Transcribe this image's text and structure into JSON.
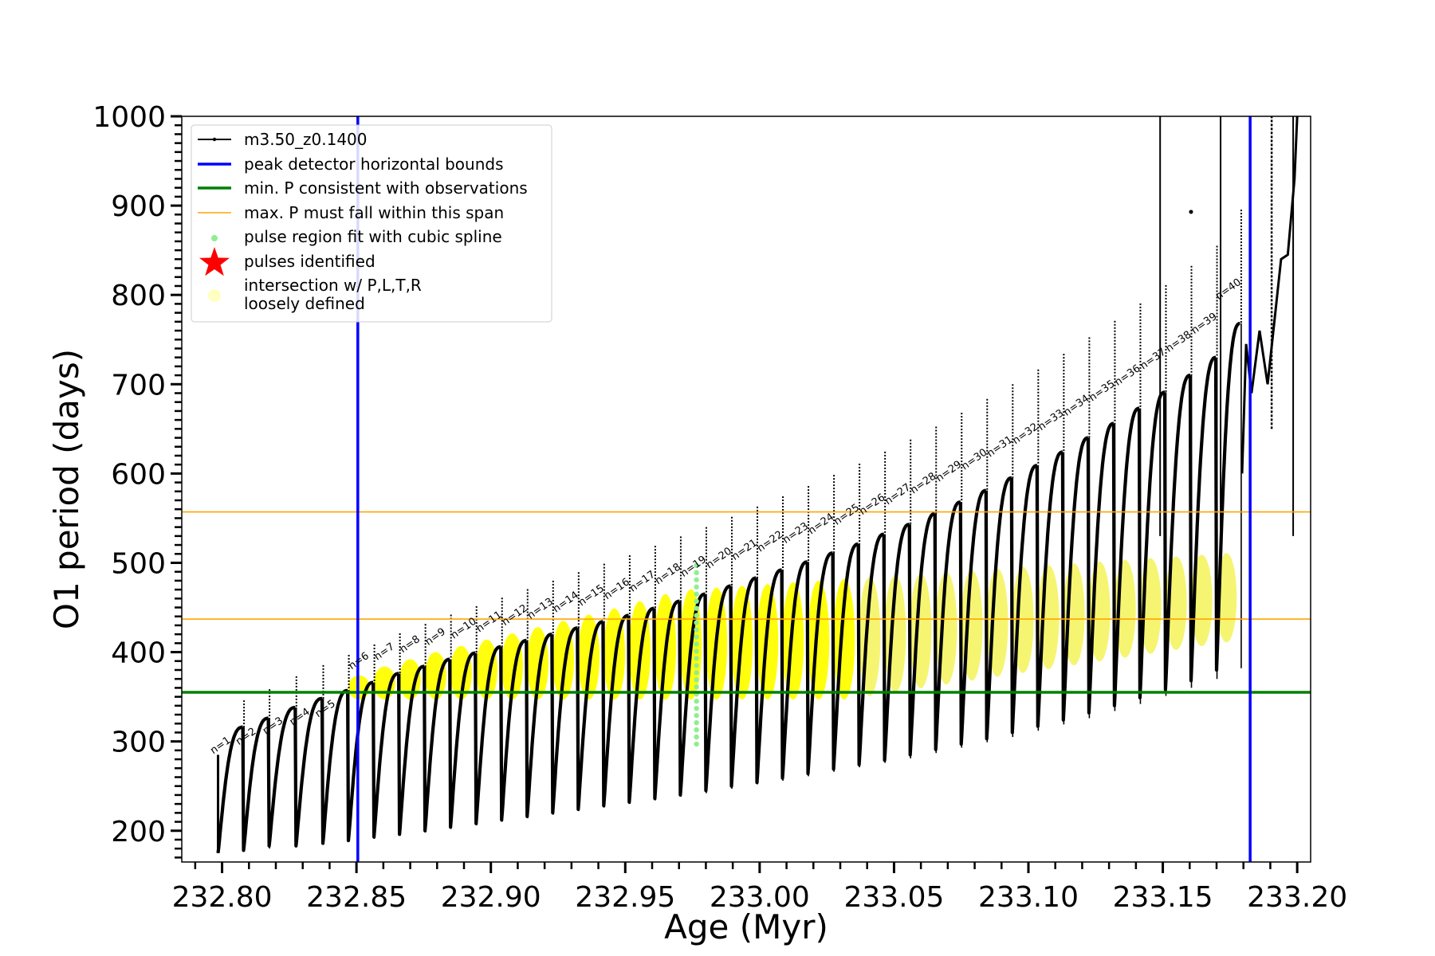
{
  "chart_data": {
    "type": "line",
    "xlabel": "Age (Myr)",
    "ylabel": "O1 period (days)",
    "xlim": [
      232.785,
      233.205
    ],
    "ylim": [
      165,
      1000
    ],
    "xticks": [
      232.8,
      232.85,
      232.9,
      232.95,
      233.0,
      233.05,
      233.1,
      233.15,
      233.2
    ],
    "xtick_labels": [
      "232.80",
      "232.85",
      "232.90",
      "232.95",
      "233.00",
      "233.05",
      "233.10",
      "233.15",
      "233.20"
    ],
    "yticks": [
      200,
      300,
      400,
      500,
      600,
      700,
      800,
      900,
      1000
    ],
    "ytick_labels": [
      "200",
      "300",
      "400",
      "500",
      "600",
      "700",
      "800",
      "900",
      "1000"
    ],
    "legend_position": "top-left",
    "legend": [
      {
        "label": "m3.50_z0.1400",
        "style": "line-marker",
        "color": "#000000"
      },
      {
        "label": "peak detector horizontal bounds",
        "style": "line",
        "color": "#0000ff"
      },
      {
        "label": "min. P consistent with observations",
        "style": "line",
        "color": "#008000"
      },
      {
        "label": "max. P must fall within this span",
        "style": "thin-line",
        "color": "#ffa500"
      },
      {
        "label": "pulse region fit with cubic spline",
        "style": "dot",
        "color": "#90ee90"
      },
      {
        "label": "pulses identified",
        "style": "star",
        "color": "#ff0000"
      },
      {
        "label": "intersection w/ P,L,T,R",
        "label2": "loosely defined",
        "style": "circle",
        "color": "#ffff99"
      }
    ],
    "vertical_lines": [
      {
        "name": "peak detector horizontal bounds",
        "x": 232.8505,
        "color": "#0000ff"
      },
      {
        "name": "peak detector horizontal bounds",
        "x": 233.1825,
        "color": "#0000ff"
      }
    ],
    "horizontal_lines": [
      {
        "name": "min. P consistent with observations",
        "y": 355,
        "color": "#008000"
      },
      {
        "name": "max. P must fall within this span",
        "y": 437,
        "color": "#ffa500"
      },
      {
        "name": "max. P must fall within this span",
        "y": 557,
        "color": "#ffa500"
      }
    ],
    "pulses": [
      {
        "n": 1,
        "t0": 232.7985,
        "t1": 232.808,
        "min": 175,
        "max": 316
      },
      {
        "n": 2,
        "t0": 232.808,
        "t1": 232.8175,
        "min": 178,
        "max": 326
      },
      {
        "n": 3,
        "t0": 232.8175,
        "t1": 232.8275,
        "min": 183,
        "max": 338
      },
      {
        "n": 4,
        "t0": 232.8275,
        "t1": 232.8375,
        "min": 183,
        "max": 348
      },
      {
        "n": 5,
        "t0": 232.8375,
        "t1": 232.847,
        "min": 186,
        "max": 357
      },
      {
        "n": 6,
        "t0": 232.847,
        "t1": 232.8565,
        "min": 189,
        "max": 366
      },
      {
        "n": 7,
        "t0": 232.8565,
        "t1": 232.866,
        "min": 193,
        "max": 376
      },
      {
        "n": 8,
        "t0": 232.866,
        "t1": 232.8755,
        "min": 196,
        "max": 384
      },
      {
        "n": 9,
        "t0": 232.8755,
        "t1": 232.885,
        "min": 200,
        "max": 392
      },
      {
        "n": 10,
        "t0": 232.885,
        "t1": 232.8945,
        "min": 204,
        "max": 399
      },
      {
        "n": 11,
        "t0": 232.8945,
        "t1": 232.904,
        "min": 208,
        "max": 406
      },
      {
        "n": 12,
        "t0": 232.904,
        "t1": 232.9135,
        "min": 212,
        "max": 413
      },
      {
        "n": 13,
        "t0": 232.9135,
        "t1": 232.923,
        "min": 216,
        "max": 420
      },
      {
        "n": 14,
        "t0": 232.923,
        "t1": 232.9325,
        "min": 220,
        "max": 427
      },
      {
        "n": 15,
        "t0": 232.9325,
        "t1": 232.942,
        "min": 224,
        "max": 434
      },
      {
        "n": 16,
        "t0": 232.942,
        "t1": 232.9515,
        "min": 228,
        "max": 441
      },
      {
        "n": 17,
        "t0": 232.9515,
        "t1": 232.961,
        "min": 232,
        "max": 449
      },
      {
        "n": 18,
        "t0": 232.961,
        "t1": 232.9705,
        "min": 236,
        "max": 457
      },
      {
        "n": 19,
        "t0": 232.9705,
        "t1": 232.98,
        "min": 240,
        "max": 465
      },
      {
        "n": 20,
        "t0": 232.98,
        "t1": 232.9895,
        "min": 245,
        "max": 474
      },
      {
        "n": 21,
        "t0": 232.9895,
        "t1": 232.999,
        "min": 250,
        "max": 483
      },
      {
        "n": 22,
        "t0": 232.999,
        "t1": 233.0085,
        "min": 254,
        "max": 492
      },
      {
        "n": 23,
        "t0": 233.0085,
        "t1": 233.018,
        "min": 259,
        "max": 501
      },
      {
        "n": 24,
        "t0": 233.018,
        "t1": 233.0275,
        "min": 264,
        "max": 511
      },
      {
        "n": 25,
        "t0": 233.0275,
        "t1": 233.037,
        "min": 269,
        "max": 521
      },
      {
        "n": 26,
        "t0": 233.037,
        "t1": 233.0465,
        "min": 274,
        "max": 532
      },
      {
        "n": 27,
        "t0": 233.0465,
        "t1": 233.056,
        "min": 279,
        "max": 543
      },
      {
        "n": 28,
        "t0": 233.056,
        "t1": 233.0655,
        "min": 285,
        "max": 555
      },
      {
        "n": 29,
        "t0": 233.0655,
        "t1": 233.075,
        "min": 291,
        "max": 568
      },
      {
        "n": 30,
        "t0": 233.075,
        "t1": 233.0845,
        "min": 297,
        "max": 581
      },
      {
        "n": 31,
        "t0": 233.0845,
        "t1": 233.094,
        "min": 303,
        "max": 595
      },
      {
        "n": 32,
        "t0": 233.094,
        "t1": 233.1035,
        "min": 310,
        "max": 609
      },
      {
        "n": 33,
        "t0": 233.1035,
        "t1": 233.113,
        "min": 317,
        "max": 624
      },
      {
        "n": 34,
        "t0": 233.113,
        "t1": 233.1225,
        "min": 324,
        "max": 640
      },
      {
        "n": 35,
        "t0": 233.1225,
        "t1": 233.132,
        "min": 332,
        "max": 656
      },
      {
        "n": 36,
        "t0": 233.132,
        "t1": 233.1415,
        "min": 340,
        "max": 673
      },
      {
        "n": 37,
        "t0": 233.1415,
        "t1": 233.151,
        "min": 349,
        "max": 691
      },
      {
        "n": 38,
        "t0": 233.151,
        "t1": 233.1605,
        "min": 358,
        "max": 710
      },
      {
        "n": 39,
        "t0": 233.1605,
        "t1": 233.17,
        "min": 368,
        "max": 730
      },
      {
        "n": 40,
        "t0": 233.17,
        "t1": 233.179,
        "min": 380,
        "max": 768
      }
    ],
    "pulse_labels": [
      "n=1",
      "n=2",
      "n=3",
      "n=4",
      "n=5",
      "n=6",
      "n=7",
      "n=8",
      "n=9",
      "n=10",
      "n=11",
      "n=12",
      "n=13",
      "n=14",
      "n=15",
      "n=16",
      "n=17",
      "n=18",
      "n=19",
      "n=20",
      "n=21",
      "n=22",
      "n=23",
      "n=24",
      "n=25",
      "n=26",
      "n=27",
      "n=28",
      "n=29",
      "n=30",
      "n=31",
      "n=32",
      "n=33",
      "n=34",
      "n=35",
      "n=36",
      "n=37",
      "n=38",
      "n=39",
      "n=40"
    ],
    "spline_fit_region": {
      "x": 232.9765,
      "y_range": [
        297,
        500
      ]
    },
    "intersection_region": {
      "x_range": [
        232.8505,
        233.1825
      ],
      "y_lower_start": 355,
      "y_upper_start": 355
    },
    "late_spikes": [
      {
        "x": 233.149,
        "y_top": 1000
      },
      {
        "x": 233.1715,
        "y_top": 1000
      },
      {
        "x": 233.1985,
        "y_top": 1000
      }
    ]
  }
}
